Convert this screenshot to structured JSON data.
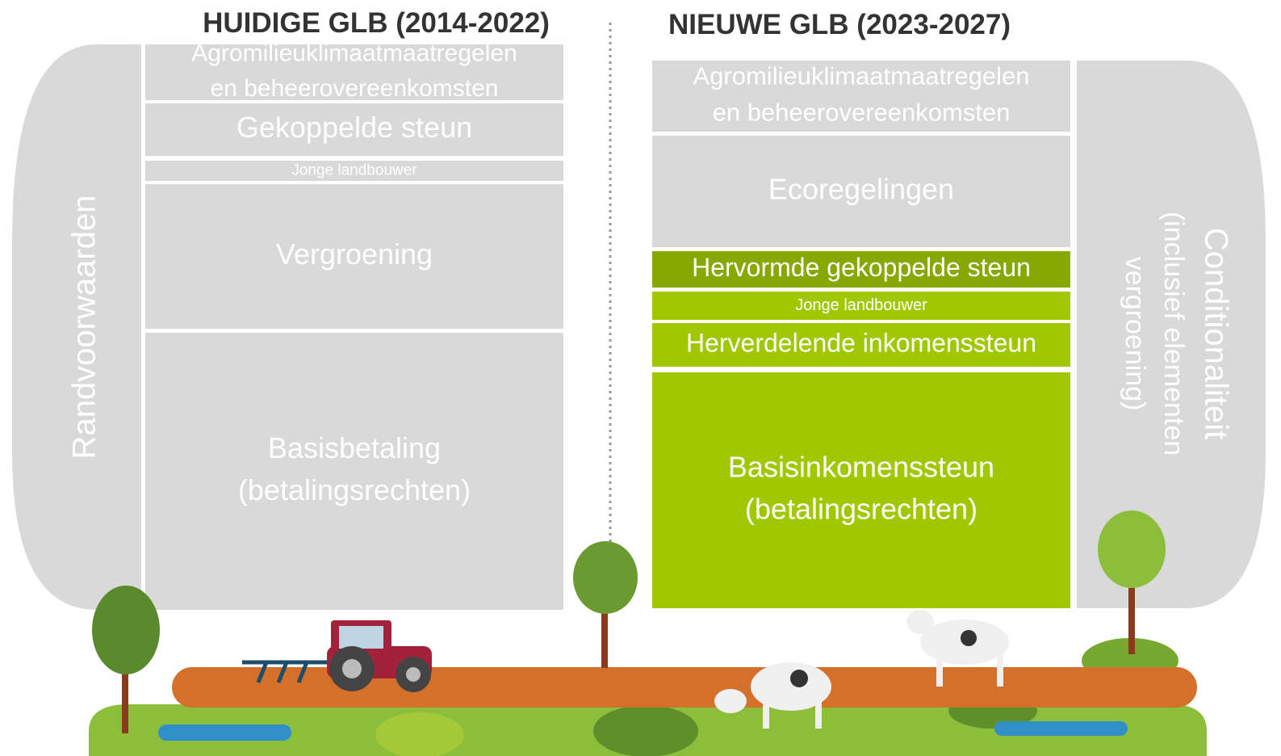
{
  "left": {
    "title": "HUIDIGE GLB (2014-2022)",
    "side_label": "Randvoorwaarden",
    "blocks": [
      {
        "lines": [
          "Agromilieuklimaatmaatregelen",
          "en beheerovereenkomsten"
        ]
      },
      {
        "lines": [
          "Gekoppelde steun"
        ]
      },
      {
        "lines": [
          "Jonge landbouwer"
        ]
      },
      {
        "lines": [
          "Vergroening"
        ]
      },
      {
        "lines": [
          "Basisbetaling",
          "(betalingsrechten)"
        ]
      }
    ]
  },
  "right": {
    "title": "NIEUWE GLB (2023-2027)",
    "side_label": [
      "Conditionaliteit",
      "(inclusief elementen",
      "vergroening)"
    ],
    "blocks": [
      {
        "lines": [
          "Agromilieuklimaatmaatregelen",
          "en beheerovereenkomsten"
        ]
      },
      {
        "lines": [
          "Ecoregelingen"
        ]
      },
      {
        "lines": [
          "Hervormde gekoppelde steun"
        ]
      },
      {
        "lines": [
          "Jonge landbouwer"
        ]
      },
      {
        "lines": [
          "Herverdelende inkomenssteun"
        ]
      },
      {
        "lines": [
          "Basisinkomenssteun",
          "(betalingsrechten)"
        ]
      }
    ]
  }
}
